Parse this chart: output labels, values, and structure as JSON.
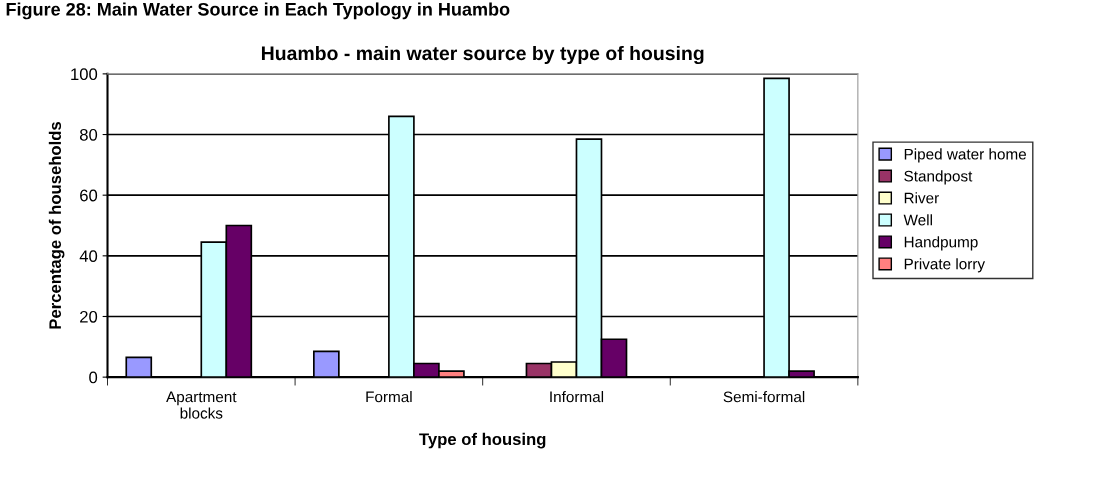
{
  "chart_data": {
    "type": "bar",
    "title": "Huambo - main water source by type of housing",
    "annotations": [
      "Figure 28: Main Water Source in Each Typology in Huambo"
    ],
    "xlabel": "Type of housing",
    "ylabel": "Percentage of households",
    "categories": [
      "Apartment\nblocks",
      "Formal",
      "Informal",
      "Semi-formal"
    ],
    "series": [
      {
        "name": "Piped water home",
        "color": "#9999ff",
        "values": [
          6.5,
          8.5,
          null,
          null
        ]
      },
      {
        "name": "Standpost",
        "color": "#993366",
        "values": [
          null,
          null,
          4.5,
          null
        ]
      },
      {
        "name": "River",
        "color": "#ffffcc",
        "values": [
          null,
          null,
          5,
          null
        ]
      },
      {
        "name": "Well",
        "color": "#ccffff",
        "values": [
          44.5,
          86,
          78.5,
          98.5
        ]
      },
      {
        "name": "Handpump",
        "color": "#660066",
        "values": [
          50,
          4.5,
          12.5,
          2
        ]
      },
      {
        "name": "Private lorry",
        "color": "#ff8080",
        "values": [
          null,
          2,
          null,
          null
        ]
      }
    ],
    "ylim": [
      0,
      100
    ],
    "yticks": [
      0,
      20,
      40,
      60,
      80,
      100
    ],
    "grid": "y",
    "legend": "right"
  }
}
